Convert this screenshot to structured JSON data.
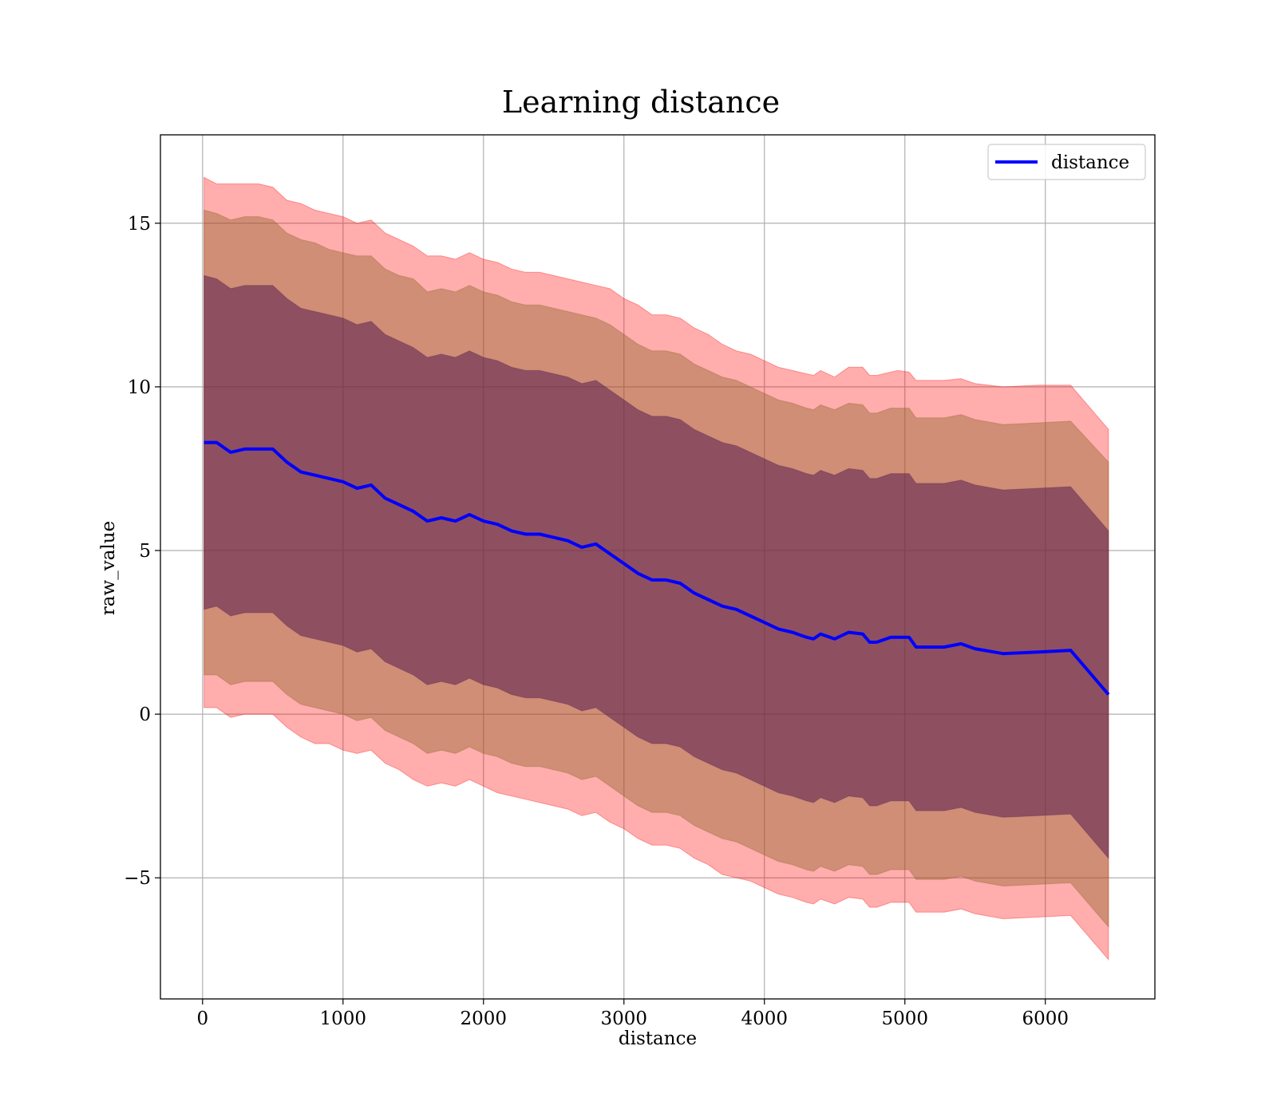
{
  "chart_data": {
    "type": "area",
    "title": "Learning distance",
    "xlabel": "distance",
    "ylabel": "raw_value",
    "xlim": [
      -300,
      6780
    ],
    "ylim": [
      -8.7,
      17.7
    ],
    "xticks": [
      0,
      1000,
      2000,
      3000,
      4000,
      5000,
      6000
    ],
    "xtick_labels": [
      "0",
      "1000",
      "2000",
      "3000",
      "4000",
      "5000",
      "6000"
    ],
    "yticks": [
      -5,
      0,
      5,
      10,
      15
    ],
    "ytick_labels": [
      "−5",
      "0",
      "5",
      "10",
      "15"
    ],
    "grid": true,
    "legend_position": "top-right",
    "x": [
      10,
      100,
      200,
      300,
      400,
      500,
      600,
      700,
      800,
      900,
      1000,
      1100,
      1200,
      1300,
      1400,
      1500,
      1600,
      1700,
      1800,
      1900,
      2000,
      2100,
      2200,
      2300,
      2400,
      2500,
      2600,
      2700,
      2800,
      2900,
      3000,
      3100,
      3200,
      3300,
      3400,
      3500,
      3600,
      3700,
      3800,
      3900,
      4000,
      4100,
      4200,
      4300,
      4350,
      4400,
      4500,
      4600,
      4700,
      4750,
      4800,
      4900,
      4950,
      5030,
      5080,
      5280,
      5400,
      5500,
      5700,
      5950,
      6180,
      6450
    ],
    "series": [
      {
        "name": "distance",
        "color": "#0000ff",
        "values": [
          8.3,
          8.3,
          8.0,
          8.1,
          8.1,
          8.1,
          7.7,
          7.4,
          7.3,
          7.2,
          7.1,
          6.9,
          7.0,
          6.6,
          6.4,
          6.2,
          5.9,
          6.0,
          5.9,
          6.1,
          5.9,
          5.8,
          5.6,
          5.5,
          5.5,
          5.4,
          5.3,
          5.1,
          5.2,
          4.9,
          4.6,
          4.3,
          4.1,
          4.1,
          4.0,
          3.7,
          3.5,
          3.3,
          3.2,
          3.0,
          2.8,
          2.6,
          2.5,
          2.35,
          2.3,
          2.45,
          2.3,
          2.5,
          2.45,
          2.2,
          2.2,
          2.35,
          2.35,
          2.35,
          2.05,
          2.05,
          2.15,
          2.0,
          1.85,
          1.9,
          1.95,
          0.6
        ]
      }
    ],
    "bands": [
      {
        "color": "#ff0000",
        "opacity": 0.32,
        "upper": [
          16.4,
          16.2,
          16.2,
          16.2,
          16.2,
          16.1,
          15.7,
          15.6,
          15.4,
          15.3,
          15.2,
          15.0,
          15.1,
          14.7,
          14.5,
          14.3,
          14.0,
          14.0,
          13.9,
          14.1,
          13.9,
          13.8,
          13.6,
          13.5,
          13.5,
          13.4,
          13.3,
          13.2,
          13.1,
          13.0,
          12.7,
          12.5,
          12.2,
          12.2,
          12.1,
          11.8,
          11.6,
          11.3,
          11.1,
          11.0,
          10.8,
          10.6,
          10.5,
          10.4,
          10.35,
          10.5,
          10.3,
          10.6,
          10.6,
          10.35,
          10.35,
          10.45,
          10.5,
          10.45,
          10.2,
          10.2,
          10.25,
          10.1,
          10.0,
          10.05,
          10.05,
          8.7
        ],
        "lower": [
          0.2,
          0.2,
          -0.1,
          0.0,
          0.0,
          0.0,
          -0.4,
          -0.7,
          -0.9,
          -0.9,
          -1.1,
          -1.2,
          -1.1,
          -1.5,
          -1.7,
          -2.0,
          -2.2,
          -2.1,
          -2.2,
          -2.0,
          -2.2,
          -2.4,
          -2.5,
          -2.6,
          -2.7,
          -2.8,
          -2.9,
          -3.1,
          -3.0,
          -3.3,
          -3.5,
          -3.8,
          -4.0,
          -4.0,
          -4.1,
          -4.4,
          -4.6,
          -4.9,
          -5.0,
          -5.1,
          -5.3,
          -5.5,
          -5.6,
          -5.75,
          -5.8,
          -5.65,
          -5.8,
          -5.6,
          -5.65,
          -5.9,
          -5.9,
          -5.75,
          -5.75,
          -5.75,
          -6.05,
          -6.05,
          -5.95,
          -6.1,
          -6.25,
          -6.2,
          -6.15,
          -7.5
        ]
      },
      {
        "color": "#8c6428",
        "opacity": 0.42,
        "upper": [
          15.4,
          15.3,
          15.1,
          15.2,
          15.2,
          15.1,
          14.7,
          14.5,
          14.4,
          14.2,
          14.1,
          14.0,
          14.0,
          13.6,
          13.4,
          13.3,
          12.9,
          13.0,
          12.9,
          13.1,
          12.9,
          12.8,
          12.6,
          12.5,
          12.5,
          12.4,
          12.3,
          12.2,
          12.1,
          11.9,
          11.6,
          11.3,
          11.1,
          11.1,
          11.0,
          10.7,
          10.5,
          10.3,
          10.2,
          10.0,
          9.8,
          9.6,
          9.5,
          9.35,
          9.3,
          9.45,
          9.3,
          9.5,
          9.45,
          9.2,
          9.2,
          9.35,
          9.35,
          9.35,
          9.05,
          9.05,
          9.15,
          9.0,
          8.85,
          8.9,
          8.95,
          7.7
        ],
        "lower": [
          1.2,
          1.2,
          0.9,
          1.0,
          1.0,
          1.0,
          0.6,
          0.3,
          0.2,
          0.1,
          0.0,
          -0.2,
          -0.1,
          -0.5,
          -0.7,
          -0.9,
          -1.2,
          -1.1,
          -1.2,
          -1.0,
          -1.2,
          -1.3,
          -1.5,
          -1.6,
          -1.6,
          -1.7,
          -1.8,
          -2.0,
          -1.9,
          -2.2,
          -2.5,
          -2.8,
          -3.0,
          -3.0,
          -3.1,
          -3.4,
          -3.6,
          -3.8,
          -3.9,
          -4.1,
          -4.3,
          -4.5,
          -4.6,
          -4.75,
          -4.8,
          -4.65,
          -4.8,
          -4.6,
          -4.65,
          -4.9,
          -4.9,
          -4.75,
          -4.75,
          -4.75,
          -5.05,
          -5.05,
          -4.95,
          -5.1,
          -5.25,
          -5.2,
          -5.15,
          -6.5
        ]
      },
      {
        "color": "#5a1e50",
        "opacity": 0.55,
        "upper": [
          13.4,
          13.3,
          13.0,
          13.1,
          13.1,
          13.1,
          12.7,
          12.4,
          12.3,
          12.2,
          12.1,
          11.9,
          12.0,
          11.6,
          11.4,
          11.2,
          10.9,
          11.0,
          10.9,
          11.1,
          10.9,
          10.8,
          10.6,
          10.5,
          10.5,
          10.4,
          10.3,
          10.1,
          10.2,
          9.9,
          9.6,
          9.3,
          9.1,
          9.1,
          9.0,
          8.7,
          8.5,
          8.3,
          8.2,
          8.0,
          7.8,
          7.6,
          7.5,
          7.35,
          7.3,
          7.45,
          7.3,
          7.5,
          7.45,
          7.2,
          7.2,
          7.35,
          7.35,
          7.35,
          7.05,
          7.05,
          7.15,
          7.0,
          6.85,
          6.9,
          6.95,
          5.6
        ],
        "lower": [
          3.2,
          3.3,
          3.0,
          3.1,
          3.1,
          3.1,
          2.7,
          2.4,
          2.3,
          2.2,
          2.1,
          1.9,
          2.0,
          1.6,
          1.4,
          1.2,
          0.9,
          1.0,
          0.9,
          1.1,
          0.9,
          0.8,
          0.6,
          0.5,
          0.5,
          0.4,
          0.3,
          0.1,
          0.2,
          -0.1,
          -0.4,
          -0.7,
          -0.9,
          -0.9,
          -1.0,
          -1.3,
          -1.5,
          -1.7,
          -1.8,
          -2.0,
          -2.2,
          -2.4,
          -2.5,
          -2.65,
          -2.7,
          -2.55,
          -2.7,
          -2.5,
          -2.55,
          -2.8,
          -2.8,
          -2.65,
          -2.65,
          -2.65,
          -2.95,
          -2.95,
          -2.85,
          -3.0,
          -3.15,
          -3.1,
          -3.05,
          -4.4
        ]
      }
    ]
  }
}
